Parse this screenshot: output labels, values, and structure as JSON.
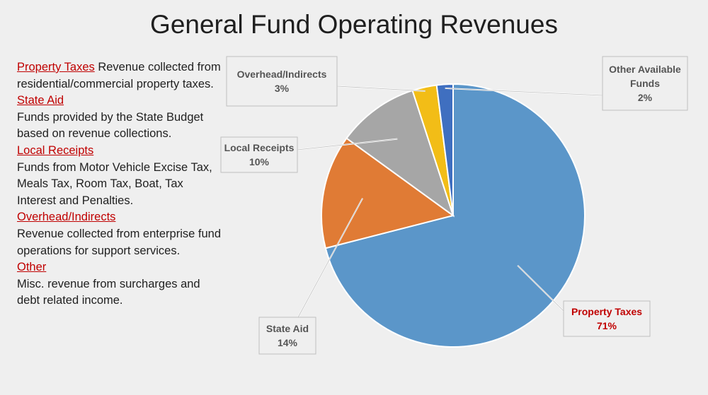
{
  "title": "General Fund Operating Revenues",
  "definitions": [
    {
      "term": "Property Taxes",
      "description": "Revenue collected from residential/commercial property taxes."
    },
    {
      "term": "State Aid",
      "description": "Funds provided by the State Budget based on revenue collections."
    },
    {
      "term": "Local Receipts",
      "description": "Funds from Motor Vehicle Excise Tax, Meals Tax, Room Tax, Boat, Tax Interest and Penalties."
    },
    {
      "term": "Overhead/Indirects",
      "description": "Revenue collected from enterprise fund operations for support services."
    },
    {
      "term": "Other",
      "description": "Misc. revenue from surcharges and debt related income."
    }
  ],
  "chart_data": {
    "type": "pie",
    "title": "General Fund Operating Revenues",
    "slices": [
      {
        "label": "Property Taxes",
        "value": 71,
        "value_label": "71%",
        "color": "#5b96c9"
      },
      {
        "label": "State Aid",
        "value": 14,
        "value_label": "14%",
        "color": "#e07b35"
      },
      {
        "label": "Local Receipts",
        "value": 10,
        "value_label": "10%",
        "color": "#a6a6a6"
      },
      {
        "label": "Overhead/Indirects",
        "value": 3,
        "value_label": "3%",
        "color": "#f2bd17"
      },
      {
        "label": "Other Available Funds",
        "value": 2,
        "value_label": "2%",
        "color": "#3f6fc0"
      }
    ],
    "start_angle": "12 o'clock",
    "direction": "clockwise",
    "label_style": "callout boxes with leader lines"
  }
}
